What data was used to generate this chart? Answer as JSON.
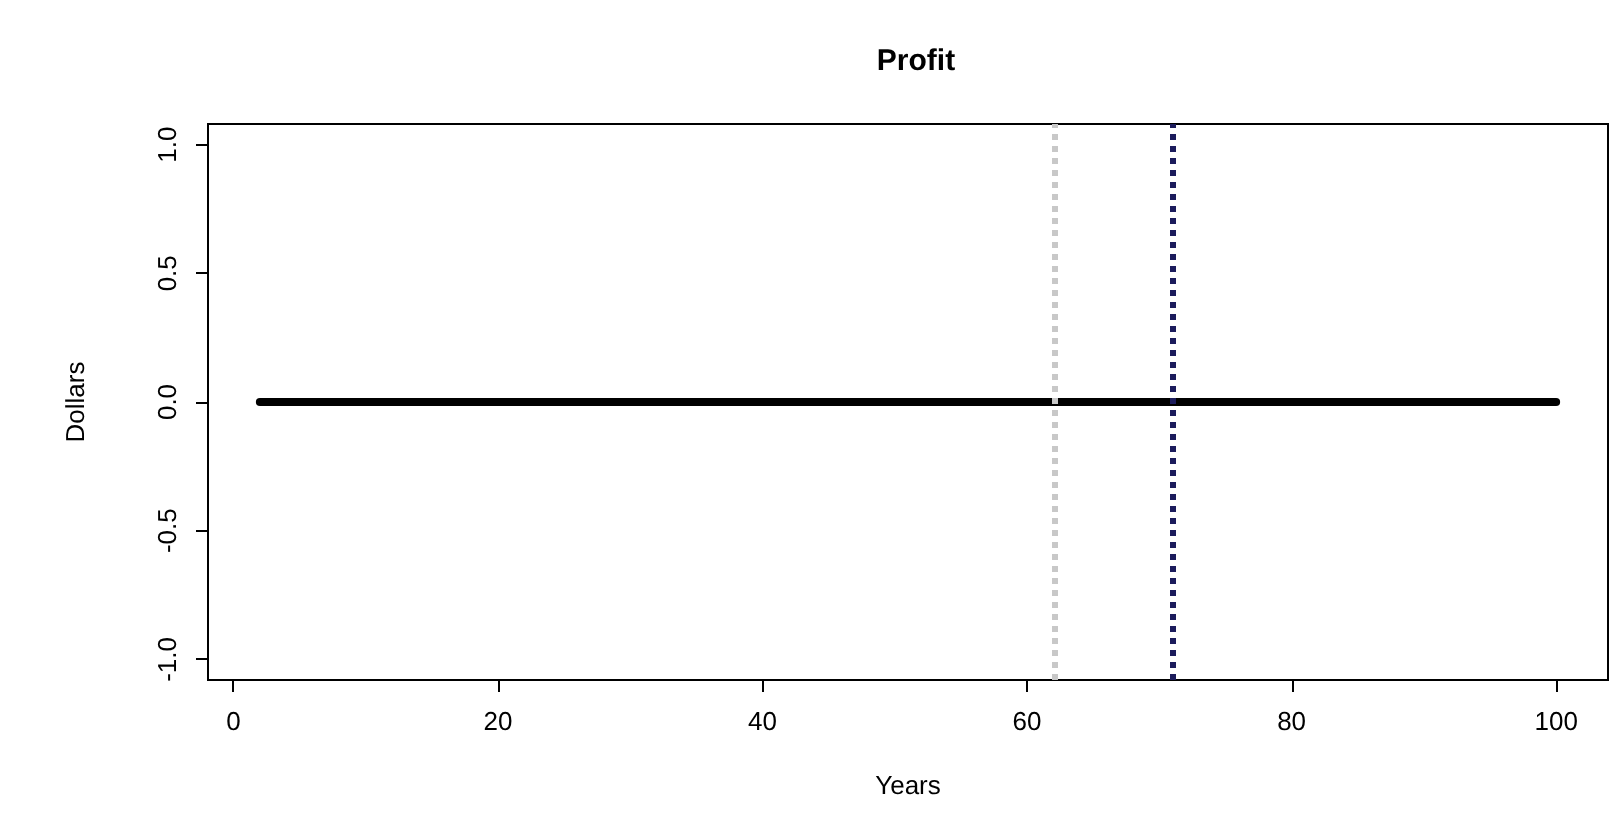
{
  "chart_data": {
    "type": "line",
    "title": "Profit",
    "xlabel": "Years",
    "ylabel": "Dollars",
    "x": [
      2,
      100
    ],
    "series": [
      {
        "color": "#000000",
        "values": [
          0,
          0
        ]
      }
    ],
    "xlim": [
      -1.92,
      103.92
    ],
    "xticks": [
      0,
      20,
      40,
      60,
      80,
      100
    ],
    "ylim": [
      -1.08,
      1.08
    ],
    "yticks": [
      {
        "value": -1,
        "label": "-1.0"
      },
      -0.5,
      {
        "value": 0,
        "label": "0.0"
      },
      0.5,
      {
        "value": 1,
        "label": "1.0"
      }
    ],
    "ref_lines": [
      {
        "axis": "x",
        "value": 62,
        "color": "#c8c8c8",
        "line_style": "dotted"
      },
      {
        "axis": "x",
        "value": 71,
        "color": "#1c1c5c",
        "line_style": "dotted"
      }
    ],
    "grid": false,
    "marker": "none",
    "line_style": "solid"
  }
}
